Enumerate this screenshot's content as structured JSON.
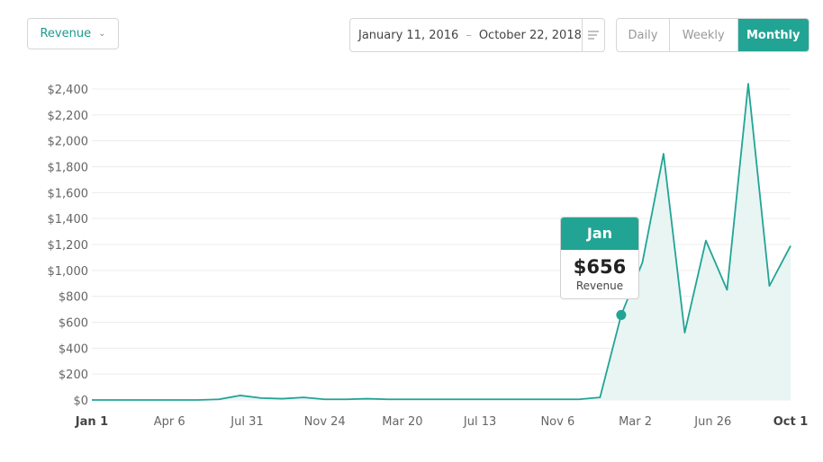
{
  "metric_selector": {
    "label": "Revenue"
  },
  "date_range": {
    "start": "January 11, 2016",
    "separator": "–",
    "end": "October 22, 2018"
  },
  "interval_tabs": [
    {
      "label": "Daily",
      "active": false
    },
    {
      "label": "Weekly",
      "active": false
    },
    {
      "label": "Monthly",
      "active": true
    }
  ],
  "tooltip": {
    "period": "Jan",
    "value": "$656",
    "metric": "Revenue"
  },
  "colors": {
    "accent": "#22a495",
    "area_fill": "#e8f5f3",
    "grid": "#ececec"
  },
  "chart_data": {
    "type": "area",
    "ylim": [
      0,
      2400
    ],
    "y_ticks": [
      0,
      200,
      400,
      600,
      800,
      1000,
      1200,
      1400,
      1600,
      1800,
      2000,
      2200,
      2400
    ],
    "y_tick_labels": [
      "$0",
      "$200",
      "$400",
      "$600",
      "$800",
      "$1,000",
      "$1,200",
      "$1,400",
      "$1,600",
      "$1,800",
      "$2,000",
      "$2,200",
      "$2,400"
    ],
    "x_tick_labels": [
      "Jan 1",
      "Apr 6",
      "Jul 31",
      "Nov 24",
      "Mar 20",
      "Jul 13",
      "Nov 6",
      "Mar 2",
      "Jun 26",
      "Oct 1"
    ],
    "x_tick_bold": [
      true,
      false,
      false,
      false,
      false,
      false,
      false,
      false,
      false,
      true
    ],
    "series": [
      {
        "values": [
          0,
          0,
          0,
          0,
          0,
          0,
          5,
          35,
          15,
          10,
          20,
          5,
          5,
          10,
          5,
          5,
          5,
          5,
          5,
          5,
          5,
          5,
          5,
          5,
          20,
          656,
          1060,
          1900,
          520,
          1230,
          850,
          2440,
          880,
          1190
        ]
      }
    ],
    "highlight_index": 25
  }
}
